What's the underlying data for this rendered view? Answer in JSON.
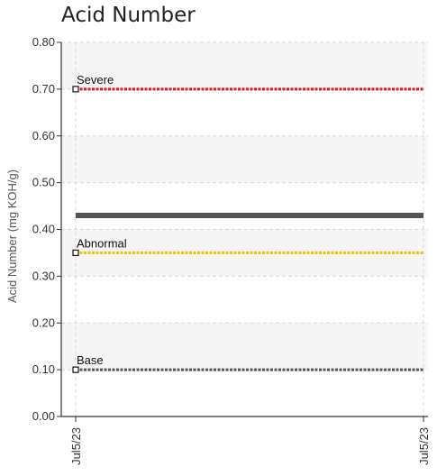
{
  "chart_data": {
    "type": "line",
    "title": "Acid Number",
    "ylabel": "Acid Number (mg KOH/g)",
    "xlabel": "",
    "ylim": [
      0,
      0.8
    ],
    "yticks": [
      "0.00",
      "0.10",
      "0.20",
      "0.30",
      "0.40",
      "0.50",
      "0.60",
      "0.70",
      "0.80"
    ],
    "x": [
      "Jul5/23",
      "Jul5/23"
    ],
    "series": [
      {
        "values": [
          0.43,
          0.43
        ],
        "color": "#555555"
      }
    ],
    "limits": [
      {
        "name": "Severe",
        "value": 0.7,
        "color": "#e8141b"
      },
      {
        "name": "Abnormal",
        "value": 0.35,
        "color": "#f2c200"
      },
      {
        "name": "Base",
        "value": 0.1,
        "color": "#555555"
      }
    ],
    "grid": true,
    "band_color": "#f5f5f5"
  }
}
